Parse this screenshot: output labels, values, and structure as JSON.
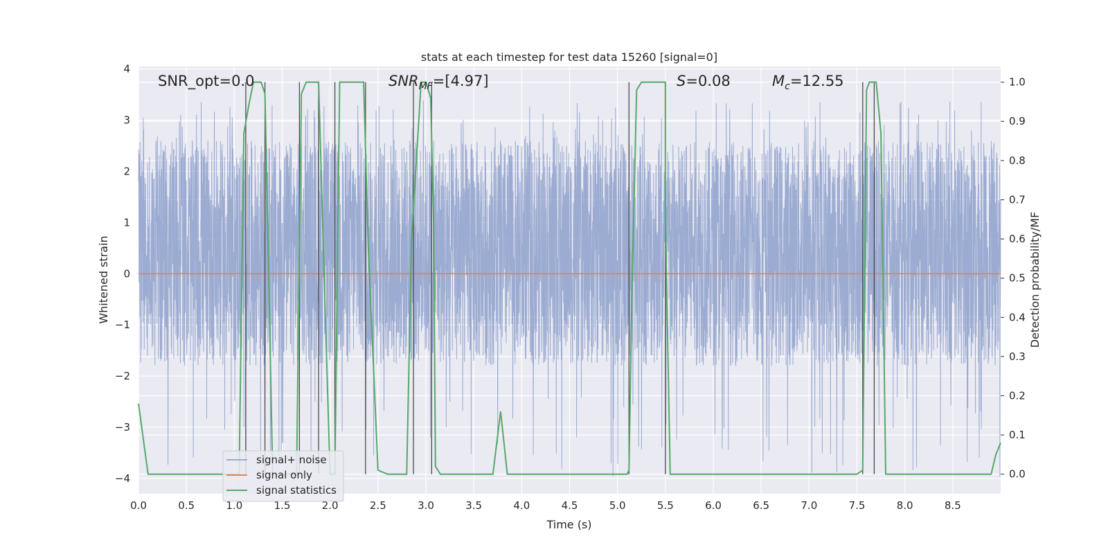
{
  "chart_data": {
    "type": "line",
    "title": "stats at each timestep for test data 15260 [signal=0]",
    "xlabel": "Time (s)",
    "ylabel_left": "Whitened strain",
    "ylabel_right": "Detection probability/MF",
    "xlim": [
      0.0,
      9.0
    ],
    "ylim_left": [
      -4.3,
      4.05
    ],
    "ylim_right": [
      -0.05,
      1.04
    ],
    "x_ticks": [
      "0.0",
      "0.5",
      "1.0",
      "1.5",
      "2.0",
      "2.5",
      "3.0",
      "3.5",
      "4.0",
      "4.5",
      "5.0",
      "5.5",
      "6.0",
      "6.5",
      "7.0",
      "7.5",
      "8.0",
      "8.5"
    ],
    "y_ticks_left": [
      "-4",
      "-3",
      "-2",
      "-1",
      "0",
      "1",
      "2",
      "3",
      "4"
    ],
    "y_ticks_right": [
      "0.0",
      "0.1",
      "0.2",
      "0.3",
      "0.4",
      "0.5",
      "0.6",
      "0.7",
      "0.8",
      "0.9",
      "1.0"
    ],
    "grid": true,
    "legend_position": "lower-left",
    "annotations": {
      "snr_opt": "SNR_opt=0.0",
      "snr_mf_main": "SNR",
      "snr_mf_sub": "MF",
      "snr_mf_value": "=[4.97]",
      "s_main": "S",
      "s_value": "=0.08",
      "mc_main": "M",
      "mc_sub": "c",
      "mc_value": "=12.55"
    },
    "series": [
      {
        "name": "signal+ noise",
        "axis": "left",
        "color": "#8da0cb",
        "description": "whitened strain noise band, approx. amplitude -1.8 to 2.6 with spikes to about -4 and 3.4",
        "band": [
          -1.8,
          2.6
        ],
        "extremes": [
          -4.0,
          3.4
        ]
      },
      {
        "name": "signal only",
        "axis": "left",
        "color": "#dd8452",
        "x": [
          0.0,
          9.0
        ],
        "y": [
          0.0,
          0.0
        ]
      },
      {
        "name": "signal statistics",
        "axis": "right",
        "color": "#55a868",
        "x": [
          0.0,
          0.1,
          0.2,
          0.5,
          0.8,
          1.0,
          1.05,
          1.1,
          1.15,
          1.2,
          1.28,
          1.32,
          1.36,
          1.4,
          1.5,
          1.6,
          1.65,
          1.7,
          1.75,
          1.8,
          1.88,
          1.95,
          2.0,
          2.05,
          2.1,
          2.2,
          2.3,
          2.35,
          2.4,
          2.5,
          2.6,
          2.75,
          2.8,
          2.85,
          2.95,
          3.0,
          3.05,
          3.08,
          3.1,
          3.15,
          3.2,
          3.4,
          3.6,
          3.7,
          3.78,
          3.85,
          3.95,
          4.2,
          4.8,
          5.1,
          5.12,
          5.15,
          5.2,
          5.25,
          5.3,
          5.35,
          5.5,
          5.5,
          5.55,
          5.65,
          5.8,
          6.2,
          6.8,
          7.2,
          7.5,
          7.56,
          7.6,
          7.63,
          7.7,
          7.75,
          7.8,
          7.85,
          7.9,
          8.2,
          8.6,
          8.9,
          8.95,
          9.0
        ],
        "y": [
          0.18,
          0.0,
          0.0,
          0.0,
          0.0,
          0.0,
          0.0,
          0.87,
          0.94,
          1.0,
          1.0,
          0.97,
          0.5,
          0.0,
          0.0,
          0.0,
          0.0,
          0.97,
          1.0,
          1.0,
          1.0,
          0.4,
          0.0,
          0.0,
          1.0,
          1.0,
          1.0,
          1.0,
          0.57,
          0.01,
          0.0,
          0.0,
          0.0,
          0.6,
          1.0,
          1.0,
          0.96,
          0.65,
          0.02,
          0.0,
          0.0,
          0.0,
          0.0,
          0.0,
          0.16,
          0.0,
          0.0,
          0.0,
          0.0,
          0.0,
          0.01,
          0.45,
          0.98,
          1.0,
          1.0,
          1.0,
          1.0,
          0.65,
          0.0,
          0.0,
          0.0,
          0.0,
          0.0,
          0.0,
          0.0,
          0.01,
          0.98,
          1.0,
          1.0,
          0.87,
          0.0,
          0.0,
          0.0,
          0.0,
          0.0,
          0.0,
          0.05,
          0.08
        ]
      }
    ],
    "vertical_lines_x": [
      1.12,
      1.32,
      1.68,
      1.88,
      2.05,
      2.37,
      2.87,
      3.06,
      5.12,
      5.5,
      7.56,
      7.68
    ]
  }
}
